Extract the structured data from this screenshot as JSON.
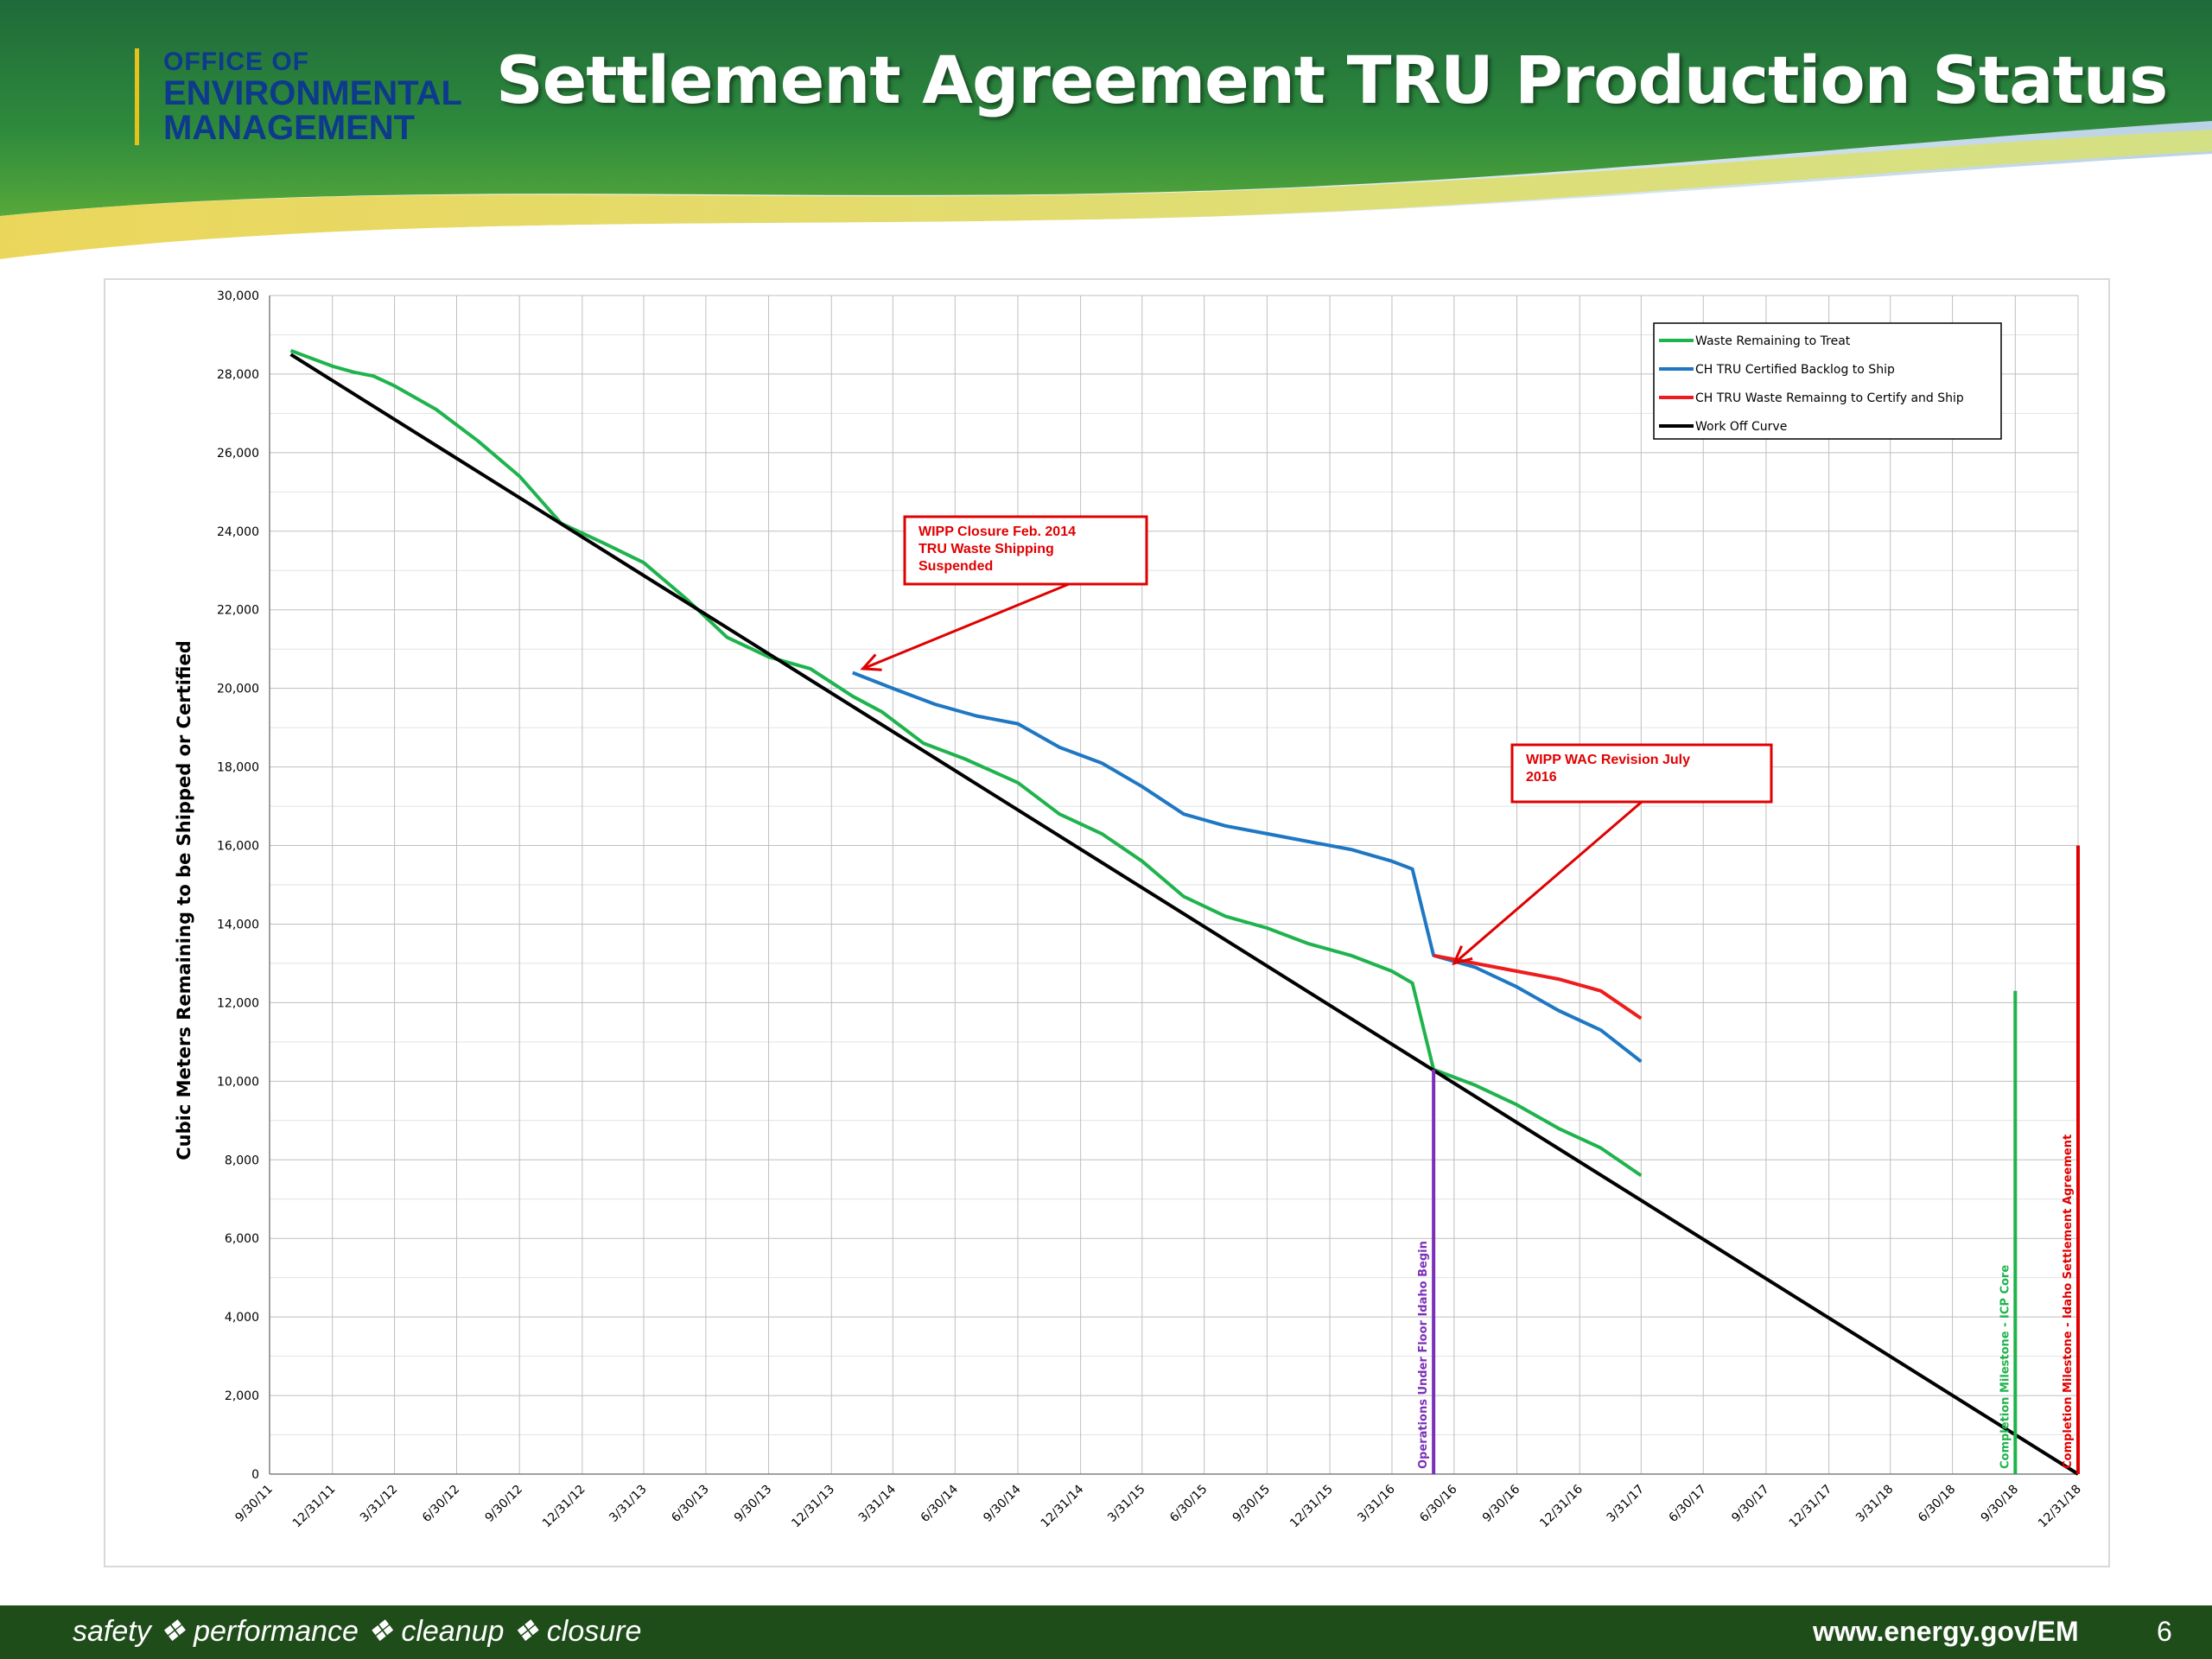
{
  "header": {
    "logo": {
      "line1": "OFFICE OF",
      "line2": "ENVIRONMENTAL",
      "line3": "MANAGEMENT"
    },
    "title": "Settlement Agreement TRU Production Status"
  },
  "footer": {
    "tagline": "safety ❖ performance ❖ cleanup ❖ closure",
    "url": "www.energy.gov/EM",
    "page_number": "6"
  },
  "colors": {
    "waste_remaining": "#1fb34d",
    "certified_backlog": "#1f77c4",
    "remaining_certify_ship": "#ee1c1c",
    "work_off": "#000000",
    "operations_marker": "#7b30b8",
    "icp_milestone": "#1fb34d",
    "settlement_milestone": "#e00000"
  },
  "chart_data": {
    "type": "line",
    "title": "",
    "xlabel": "",
    "ylabel": "Cubic Meters Remaining to be Shipped or Certified",
    "ylim": [
      0,
      30000
    ],
    "grid": true,
    "legend_position": "top-right",
    "y_ticks": [
      "0",
      "2,000",
      "4,000",
      "6,000",
      "8,000",
      "10,000",
      "12,000",
      "14,000",
      "16,000",
      "18,000",
      "20,000",
      "22,000",
      "24,000",
      "26,000",
      "28,000",
      "30,000"
    ],
    "x_ticks": [
      "9/30/11",
      "12/31/11",
      "3/31/12",
      "6/30/12",
      "9/30/12",
      "12/31/12",
      "3/31/13",
      "6/30/13",
      "9/30/13",
      "12/31/13",
      "3/31/14",
      "6/30/14",
      "9/30/14",
      "12/31/14",
      "3/31/15",
      "6/30/15",
      "9/30/15",
      "12/31/15",
      "3/31/16",
      "6/30/16",
      "9/30/16",
      "12/31/16",
      "3/31/17",
      "6/30/17",
      "9/30/17",
      "12/31/17",
      "3/31/18",
      "6/30/18",
      "9/30/18",
      "12/31/18"
    ],
    "series": [
      {
        "name": "Waste Remaining to Treat",
        "color": "#1fb34d",
        "x": [
          "2011-10-31",
          "2011-12-31",
          "2012-01-31",
          "2012-02-29",
          "2012-03-31",
          "2012-05-31",
          "2012-07-31",
          "2012-09-30",
          "2012-11-30",
          "2013-01-31",
          "2013-03-31",
          "2013-05-31",
          "2013-07-31",
          "2013-09-30",
          "2013-11-30",
          "2014-01-31",
          "2014-03-15",
          "2014-05-15",
          "2014-07-15",
          "2014-09-30",
          "2014-11-30",
          "2015-01-31",
          "2015-03-31",
          "2015-05-31",
          "2015-07-31",
          "2015-09-30",
          "2015-11-30",
          "2016-01-31",
          "2016-03-31",
          "2016-04-30",
          "2016-05-31",
          "2016-07-31",
          "2016-09-30",
          "2016-11-30",
          "2017-01-31",
          "2017-03-31"
        ],
        "values": [
          28600,
          28200,
          28050,
          27950,
          27700,
          27100,
          26300,
          25400,
          24200,
          23700,
          23200,
          22300,
          21300,
          20800,
          20500,
          19800,
          19400,
          18600,
          18200,
          17600,
          16800,
          16300,
          15600,
          14700,
          14200,
          13900,
          13500,
          13200,
          12800,
          12500,
          10300,
          9900,
          9400,
          8800,
          8300,
          7600
        ]
      },
      {
        "name": "CH TRU Certified Backlog to Ship",
        "color": "#1f77c4",
        "x": [
          "2014-01-31",
          "2014-03-31",
          "2014-05-31",
          "2014-07-31",
          "2014-09-30",
          "2014-11-30",
          "2015-01-31",
          "2015-03-31",
          "2015-05-31",
          "2015-07-31",
          "2015-09-30",
          "2015-11-30",
          "2016-01-31",
          "2016-03-31",
          "2016-04-30",
          "2016-05-31",
          "2016-07-31",
          "2016-09-30",
          "2016-11-30",
          "2017-01-31",
          "2017-03-31"
        ],
        "values": [
          20400,
          20000,
          19600,
          19300,
          19100,
          18500,
          18100,
          17500,
          16800,
          16500,
          16300,
          16100,
          15900,
          15600,
          15400,
          13200,
          12900,
          12400,
          11800,
          11300,
          10500
        ]
      },
      {
        "name": "CH TRU Waste Remainng to Certify and Ship",
        "color": "#ee1c1c",
        "x": [
          "2016-05-31",
          "2016-07-31",
          "2016-09-30",
          "2016-11-30",
          "2017-01-31",
          "2017-03-31"
        ],
        "values": [
          13200,
          13000,
          12800,
          12600,
          12300,
          11600
        ]
      },
      {
        "name": "Work Off Curve",
        "color": "#000000",
        "x": [
          "2011-10-31",
          "2018-12-31"
        ],
        "values": [
          28500,
          0
        ]
      }
    ],
    "vertical_markers": [
      {
        "label": "Operations Under Floor Idaho Begin",
        "x": "2016-05-31",
        "y_top": 10300,
        "color": "#7b30b8"
      },
      {
        "label": "Completion Milestone - ICP Core",
        "x": "2018-09-30",
        "y_top": 12300,
        "color": "#1fb34d"
      },
      {
        "label": "Completion Milestone - Idaho Settlement Agreement",
        "x": "2018-12-31",
        "y_top": 16000,
        "color": "#e00000"
      }
    ],
    "annotations": [
      {
        "lines": [
          "WIPP Closure Feb. 2014",
          "TRU Waste Shipping",
          "Suspended"
        ],
        "arrow_to": {
          "x": "2014-02-15",
          "y": 20500
        }
      },
      {
        "lines": [
          "WIPP WAC Revision July",
          "2016"
        ],
        "arrow_to": {
          "x": "2016-06-30",
          "y": 13000
        }
      }
    ]
  }
}
